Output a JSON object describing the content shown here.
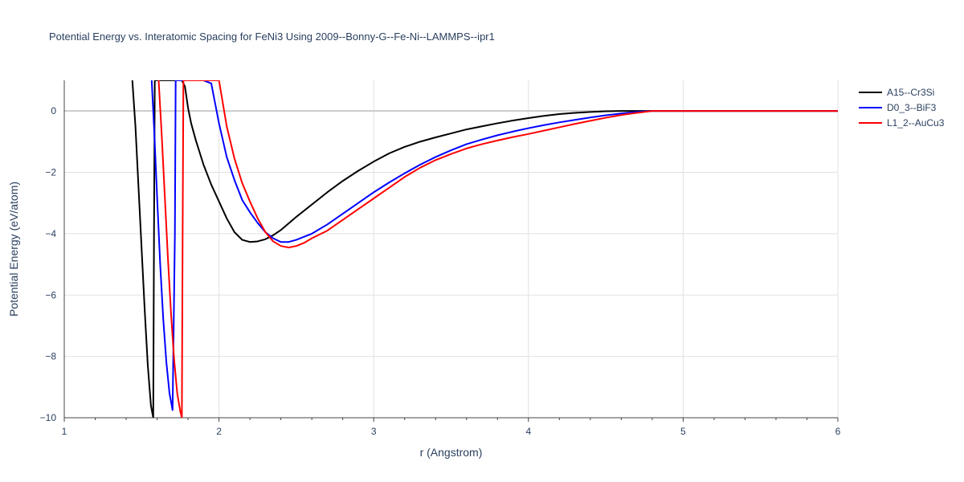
{
  "chart_data": {
    "type": "line",
    "title": "Potential Energy vs. Interatomic Spacing for FeNi3 Using 2009--Bonny-G--Fe-Ni--LAMMPS--ipr1",
    "xlabel": "r (Angstrom)",
    "ylabel": "Potential Energy (eV/atom)",
    "xlim": [
      1,
      6
    ],
    "ylim": [
      -10,
      1
    ],
    "xticks": [
      1,
      2,
      3,
      4,
      5,
      6
    ],
    "xtick_labels": [
      "1",
      "2",
      "3",
      "4",
      "5",
      "6"
    ],
    "yticks": [
      0,
      -2,
      -4,
      -6,
      -8,
      -10
    ],
    "ytick_labels": [
      "0",
      "−2",
      "−4",
      "−6",
      "−8",
      "−10"
    ],
    "grid": true,
    "legend_position": "top-right",
    "series": [
      {
        "name": "A15--Cr3Si",
        "color": "#000000",
        "x": [
          1.44,
          1.46,
          1.48,
          1.5,
          1.52,
          1.54,
          1.56,
          1.575,
          1.58,
          1.585,
          1.59,
          1.6,
          1.65,
          1.7,
          1.75,
          1.76,
          1.78,
          1.8,
          1.82,
          1.85,
          1.9,
          1.95,
          2.0,
          2.05,
          2.1,
          2.15,
          2.2,
          2.25,
          2.3,
          2.35,
          2.4,
          2.5,
          2.6,
          2.7,
          2.8,
          2.9,
          3.0,
          3.1,
          3.2,
          3.3,
          3.4,
          3.5,
          3.6,
          3.7,
          3.8,
          3.9,
          4.0,
          4.1,
          4.2,
          4.3,
          4.4,
          4.5,
          4.6,
          4.7,
          4.8,
          5.0,
          5.5,
          6.0
        ],
        "y": [
          1,
          -0.5,
          -2.5,
          -4.5,
          -6.5,
          -8.3,
          -9.6,
          -10,
          -4.0,
          1,
          1,
          1,
          1,
          1,
          1,
          1,
          0.8,
          0.1,
          -0.4,
          -0.95,
          -1.75,
          -2.4,
          -2.95,
          -3.5,
          -3.95,
          -4.2,
          -4.27,
          -4.25,
          -4.18,
          -4.05,
          -3.88,
          -3.45,
          -3.05,
          -2.65,
          -2.28,
          -1.95,
          -1.65,
          -1.38,
          -1.17,
          -1.0,
          -0.86,
          -0.73,
          -0.6,
          -0.5,
          -0.4,
          -0.31,
          -0.23,
          -0.16,
          -0.1,
          -0.06,
          -0.03,
          -0.01,
          0.0,
          0.0,
          0.0,
          0.0,
          0.0,
          0.0
        ]
      },
      {
        "name": "D0_3--BiF3",
        "color": "#0000ff",
        "x": [
          1.565,
          1.58,
          1.6,
          1.62,
          1.64,
          1.66,
          1.68,
          1.7,
          1.715,
          1.72,
          1.73,
          1.75,
          1.8,
          1.85,
          1.9,
          1.95,
          2.0,
          2.05,
          2.1,
          2.15,
          2.2,
          2.25,
          2.3,
          2.35,
          2.4,
          2.45,
          2.5,
          2.6,
          2.7,
          2.8,
          2.9,
          3.0,
          3.1,
          3.2,
          3.3,
          3.4,
          3.5,
          3.6,
          3.7,
          3.8,
          3.9,
          4.0,
          4.1,
          4.2,
          4.3,
          4.4,
          4.5,
          4.6,
          4.7,
          4.8,
          5.0,
          5.5,
          6.0
        ],
        "y": [
          1,
          -0.5,
          -2.8,
          -5.0,
          -6.8,
          -8.2,
          -9.2,
          -9.75,
          -4.0,
          1,
          1,
          1,
          1,
          1,
          1,
          0.9,
          -0.4,
          -1.5,
          -2.25,
          -2.9,
          -3.3,
          -3.65,
          -3.95,
          -4.15,
          -4.27,
          -4.27,
          -4.2,
          -4.0,
          -3.7,
          -3.35,
          -3.0,
          -2.65,
          -2.33,
          -2.03,
          -1.75,
          -1.5,
          -1.28,
          -1.08,
          -0.93,
          -0.79,
          -0.67,
          -0.56,
          -0.46,
          -0.37,
          -0.29,
          -0.21,
          -0.14,
          -0.08,
          -0.03,
          0.0,
          0.0,
          0.0,
          0.0
        ]
      },
      {
        "name": "L1_2--AuCu3",
        "color": "#ff0000",
        "x": [
          1.61,
          1.63,
          1.65,
          1.67,
          1.69,
          1.71,
          1.73,
          1.75,
          1.76,
          1.765,
          1.77,
          1.78,
          1.8,
          1.85,
          1.9,
          1.95,
          2.0,
          2.05,
          2.1,
          2.15,
          2.2,
          2.25,
          2.3,
          2.35,
          2.4,
          2.45,
          2.5,
          2.55,
          2.6,
          2.7,
          2.8,
          2.9,
          3.0,
          3.1,
          3.2,
          3.3,
          3.4,
          3.5,
          3.6,
          3.7,
          3.8,
          3.9,
          4.0,
          4.1,
          4.2,
          4.3,
          4.4,
          4.5,
          4.6,
          4.7,
          4.8,
          5.0,
          5.5,
          6.0
        ],
        "y": [
          1,
          -0.8,
          -2.8,
          -4.8,
          -6.6,
          -8.1,
          -9.2,
          -9.8,
          -10,
          -4.0,
          1,
          1,
          1,
          1,
          1,
          1,
          1,
          -0.5,
          -1.55,
          -2.35,
          -2.95,
          -3.5,
          -3.95,
          -4.25,
          -4.4,
          -4.45,
          -4.4,
          -4.3,
          -4.15,
          -3.9,
          -3.55,
          -3.2,
          -2.85,
          -2.5,
          -2.15,
          -1.85,
          -1.6,
          -1.4,
          -1.22,
          -1.08,
          -0.96,
          -0.85,
          -0.75,
          -0.64,
          -0.53,
          -0.42,
          -0.32,
          -0.22,
          -0.13,
          -0.06,
          0.0,
          0.0,
          0.0,
          0.0
        ]
      }
    ]
  }
}
